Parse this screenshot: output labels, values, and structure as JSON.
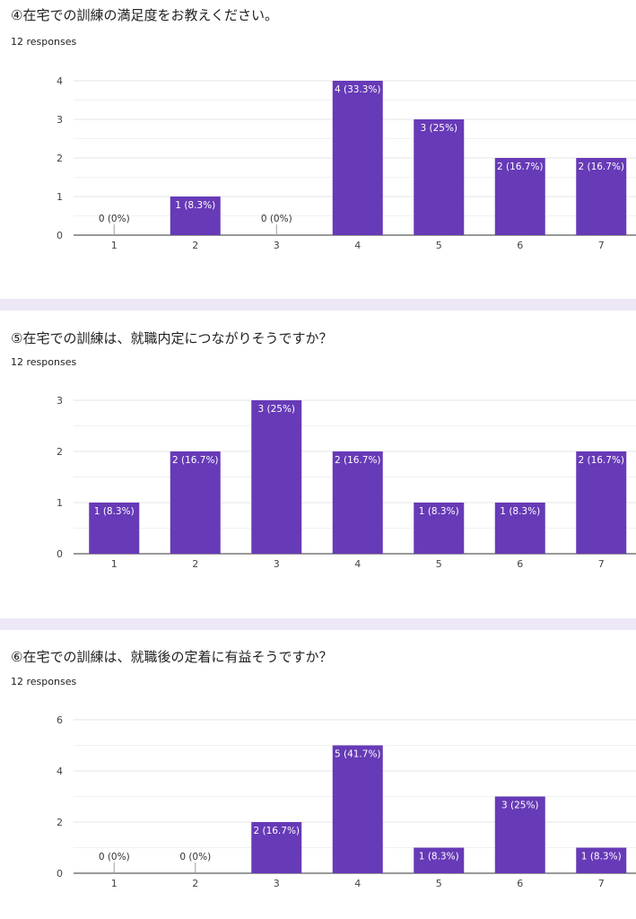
{
  "colors": {
    "bar": "#673ab7",
    "grid": "#e6e6e6",
    "axis": "#333333",
    "separator": "#ede7f6",
    "text": "#202124",
    "tick": "#444444"
  },
  "questions": [
    {
      "title": "④在宅での訓練の満足度をお教えください。",
      "responses": "12 responses"
    },
    {
      "title": "⑤在宅での訓練は、就職内定につながりそうですか？",
      "responses": "12 responses"
    },
    {
      "title": "⑥在宅での訓練は、就職後の定着に有益そうですか？",
      "responses": "12 responses"
    }
  ],
  "chart_data": [
    {
      "type": "bar",
      "categories": [
        "1",
        "2",
        "3",
        "4",
        "5",
        "6",
        "7"
      ],
      "values": [
        0,
        1,
        0,
        4,
        3,
        2,
        2
      ],
      "labels": [
        "0 (0%)",
        "1 (8.3%)",
        "0 (0%)",
        "4 (33.3%)",
        "3 (25%)",
        "2 (16.7%)",
        "2 (16.7%)"
      ],
      "ylim": [
        0,
        4
      ],
      "yticks": [
        0,
        1,
        2,
        3,
        4
      ],
      "grid": true
    },
    {
      "type": "bar",
      "categories": [
        "1",
        "2",
        "3",
        "4",
        "5",
        "6",
        "7"
      ],
      "values": [
        1,
        2,
        3,
        2,
        1,
        1,
        2
      ],
      "labels": [
        "1 (8.3%)",
        "2 (16.7%)",
        "3 (25%)",
        "2 (16.7%)",
        "1 (8.3%)",
        "1 (8.3%)",
        "2 (16.7%)"
      ],
      "ylim": [
        0,
        3
      ],
      "yticks": [
        0,
        1,
        2,
        3
      ],
      "grid": true
    },
    {
      "type": "bar",
      "categories": [
        "1",
        "2",
        "3",
        "4",
        "5",
        "6",
        "7"
      ],
      "values": [
        0,
        0,
        2,
        5,
        1,
        3,
        1
      ],
      "labels": [
        "0 (0%)",
        "0 (0%)",
        "2 (16.7%)",
        "5 (41.7%)",
        "1 (8.3%)",
        "3 (25%)",
        "1 (8.3%)"
      ],
      "ylim": [
        0,
        6
      ],
      "yticks": [
        0,
        2,
        4,
        6
      ],
      "grid": true
    }
  ]
}
